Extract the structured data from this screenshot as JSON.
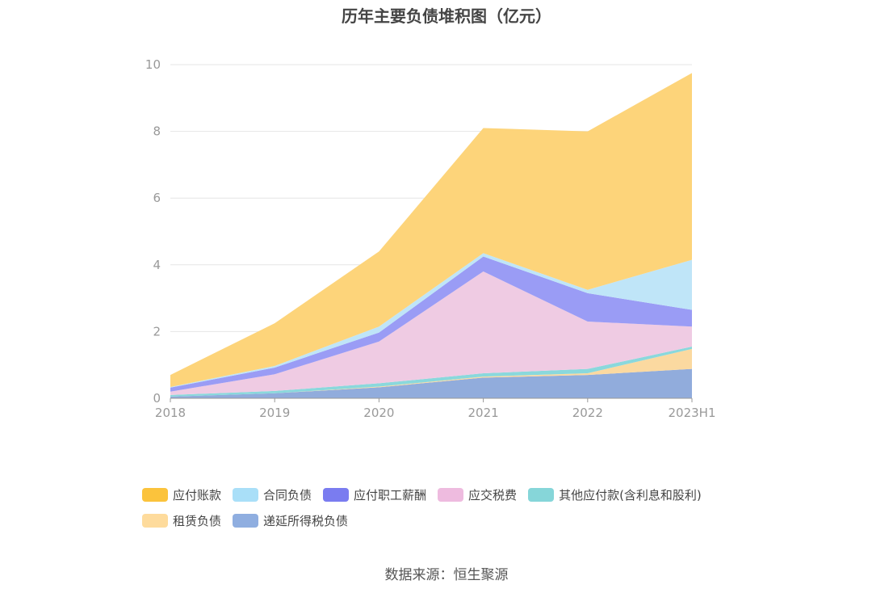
{
  "chart_data": {
    "type": "area",
    "stacked": true,
    "title": "历年主要负债堆积图（亿元）",
    "categories": [
      "2018",
      "2019",
      "2020",
      "2021",
      "2022",
      "2023H1"
    ],
    "ylim": [
      0,
      10
    ],
    "yticks": [
      0,
      2,
      4,
      6,
      8,
      10
    ],
    "grid": true,
    "legend_position": "bottom",
    "series": [
      {
        "name": "递延所得税负债",
        "color": "#91acdc",
        "values": [
          0.05,
          0.15,
          0.33,
          0.62,
          0.7,
          0.88
        ]
      },
      {
        "name": "租赁负债",
        "color": "#fbd9a0",
        "values": [
          0.0,
          0.0,
          0.02,
          0.03,
          0.05,
          0.6
        ]
      },
      {
        "name": "其他应付款(含利息和股利)",
        "color": "#8ad8dc",
        "values": [
          0.05,
          0.07,
          0.1,
          0.1,
          0.13,
          0.07
        ]
      },
      {
        "name": "应交税费",
        "color": "#efcbe3",
        "values": [
          0.1,
          0.5,
          1.25,
          3.05,
          1.42,
          0.6
        ]
      },
      {
        "name": "应付职工薪酬",
        "color": "#9a9cf5",
        "values": [
          0.12,
          0.2,
          0.27,
          0.45,
          0.85,
          0.5
        ]
      },
      {
        "name": "合同负债",
        "color": "#bfe5f8",
        "values": [
          0.02,
          0.05,
          0.18,
          0.1,
          0.1,
          1.5
        ]
      },
      {
        "name": "应付账款",
        "color": "#fdd47a",
        "values": [
          0.36,
          1.28,
          2.25,
          3.75,
          4.75,
          5.6
        ]
      }
    ]
  },
  "legend": {
    "items": [
      {
        "label": "应付账款",
        "color": "#fbc33c"
      },
      {
        "label": "合同负债",
        "color": "#a9dff8"
      },
      {
        "label": "应付职工薪酬",
        "color": "#7a7cf0"
      },
      {
        "label": "应交税费",
        "color": "#eebbdf"
      },
      {
        "label": "其他应付款(含利息和股利)",
        "color": "#86d6d9"
      },
      {
        "label": "租赁负债",
        "color": "#fedb9c"
      },
      {
        "label": "递延所得税负债",
        "color": "#8faee0"
      }
    ]
  },
  "source": "数据来源：恒生聚源"
}
